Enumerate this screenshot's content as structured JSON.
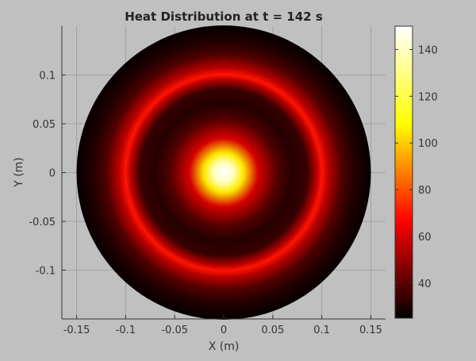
{
  "chart_data": {
    "type": "heatmap",
    "title": "Heat Distribution at t = 142 s",
    "xlabel": "X (m)",
    "ylabel": "Y (m)",
    "xlim": [
      -0.165,
      0.165
    ],
    "ylim": [
      -0.15,
      0.15
    ],
    "xticks": [
      -0.15,
      -0.1,
      -0.05,
      0,
      0.05,
      0.1,
      0.15
    ],
    "xtick_labels": [
      "-0.15",
      "-0.1",
      "-0.05",
      "0",
      "0.05",
      "0.1",
      "0.15"
    ],
    "yticks": [
      -0.1,
      -0.05,
      0,
      0.05,
      0.1
    ],
    "ytick_labels": [
      "-0.1",
      "-0.05",
      "0",
      "0.05",
      "0.1"
    ],
    "grid": true,
    "domain_radius": 0.15,
    "colormap": "hot",
    "colorbar": {
      "range": [
        25,
        150
      ],
      "ticks": [
        40,
        60,
        80,
        100,
        120,
        140
      ],
      "tick_labels": [
        "40",
        "60",
        "80",
        "100",
        "120",
        "140"
      ]
    },
    "radial_profile": [
      {
        "r": 0.0,
        "value": 150
      },
      {
        "r": 0.01,
        "value": 140
      },
      {
        "r": 0.02,
        "value": 105
      },
      {
        "r": 0.035,
        "value": 60
      },
      {
        "r": 0.055,
        "value": 38
      },
      {
        "r": 0.07,
        "value": 31
      },
      {
        "r": 0.085,
        "value": 34
      },
      {
        "r": 0.095,
        "value": 55
      },
      {
        "r": 0.1,
        "value": 70
      },
      {
        "r": 0.107,
        "value": 55
      },
      {
        "r": 0.12,
        "value": 38
      },
      {
        "r": 0.135,
        "value": 30
      },
      {
        "r": 0.15,
        "value": 26
      }
    ]
  },
  "colors": {
    "figure_background": "#c0c0c0",
    "axes_background": "#c0c0c0",
    "grid": "#9a9a9a",
    "text": "#222222",
    "colormap_stops": [
      "#000000",
      "#ff0000",
      "#ffff00",
      "#ffffff"
    ]
  }
}
